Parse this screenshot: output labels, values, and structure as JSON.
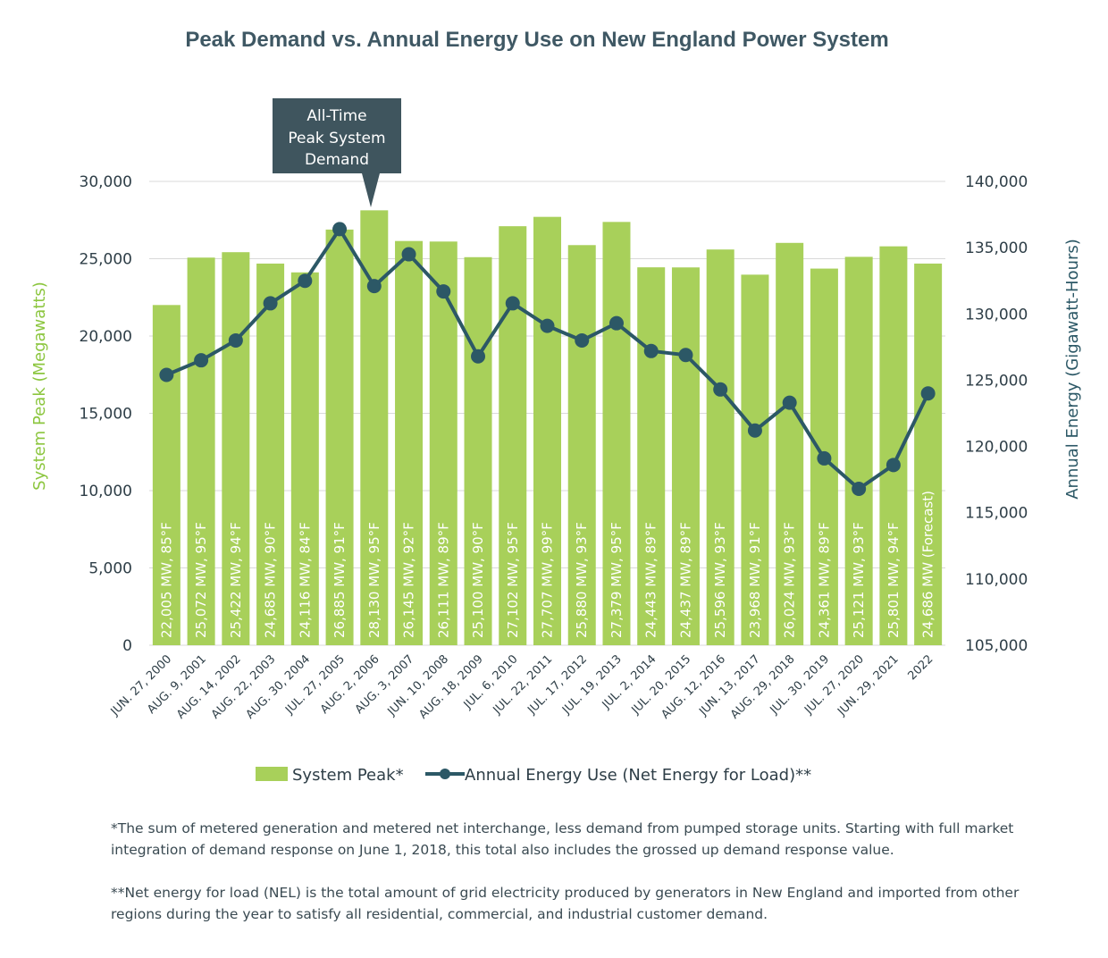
{
  "chart_data": {
    "type": "bar+line",
    "title": "Peak Demand vs. Annual Energy Use on New England Power System",
    "ylabel_left": "System Peak (Megawatts)",
    "ylabel_right": "Annual Energy (Gigawatt-Hours)",
    "ylim_left": [
      0,
      30000
    ],
    "ylim_right": [
      105000,
      140000
    ],
    "yticks_left": [
      "0",
      "5,000",
      "10,000",
      "15,000",
      "20,000",
      "25,000",
      "30,000"
    ],
    "yticks_right": [
      "105,000",
      "110,000",
      "115,000",
      "120,000",
      "125,000",
      "130,000",
      "135,000",
      "140,000"
    ],
    "categories": [
      "JUN. 27, 2000",
      "AUG. 9, 2001",
      "AUG. 14, 2002",
      "AUG. 22, 2003",
      "AUG. 30, 2004",
      "JUL. 27, 2005",
      "AUG. 2, 2006",
      "AUG. 3, 2007",
      "JUN. 10, 2008",
      "AUG. 18, 2009",
      "JUL. 6, 2010",
      "JUL. 22, 2011",
      "JUL. 17, 2012",
      "JUL. 19, 2013",
      "JUL. 2, 2014",
      "JUL. 20, 2015",
      "AUG. 12, 2016",
      "JUN. 13, 2017",
      "AUG. 29, 2018",
      "JUL. 30, 2019",
      "JUL. 27, 2020",
      "JUN. 29, 2021",
      "2022"
    ],
    "series": [
      {
        "name": "System Peak*",
        "type": "bar",
        "axis": "left",
        "color": "#a8d05a",
        "values": [
          22005,
          25072,
          25422,
          24685,
          24116,
          26885,
          28130,
          26145,
          26111,
          25100,
          27102,
          27707,
          25880,
          27379,
          24443,
          24437,
          25596,
          23968,
          26024,
          24361,
          25121,
          25801,
          24686
        ],
        "labels": [
          "22,005 MW, 85°F",
          "25,072 MW, 95°F",
          "25,422 MW, 94°F",
          "24,685 MW, 90°F",
          "24,116 MW, 84°F",
          "26,885 MW, 91°F",
          "28,130 MW, 95°F",
          "26,145 MW, 92°F",
          "26,111 MW, 89°F",
          "25,100 MW, 90°F",
          "27,102 MW, 95°F",
          "27,707 MW, 99°F",
          "25,880 MW, 93°F",
          "27,379 MW, 95°F",
          "24,443 MW, 89°F",
          "24,437 MW, 89°F",
          "25,596 MW, 93°F",
          "23,968 MW, 91°F",
          "26,024 MW, 93°F",
          "24,361 MW, 89°F",
          "25,121 MW, 93°F",
          "25,801 MW, 94°F",
          "24,686 MW (Forecast)"
        ]
      },
      {
        "name": "Annual Energy Use (Net Energy for Load)**",
        "type": "line",
        "axis": "right",
        "color": "#2c5866",
        "values": [
          125400,
          126500,
          128000,
          130800,
          132500,
          136400,
          132100,
          134500,
          131700,
          126800,
          130800,
          129100,
          128000,
          129300,
          127200,
          126900,
          124300,
          121200,
          123300,
          119100,
          116800,
          118600,
          124000
        ]
      }
    ],
    "callout": {
      "lines": [
        "All-Time",
        "Peak System",
        "Demand"
      ],
      "target_category": "AUG. 2, 2006"
    },
    "legend": [
      "System Peak*",
      "Annual Energy Use (Net Energy for Load)**"
    ]
  },
  "footnotes": [
    "*The sum of metered generation and metered net interchange, less demand from pumped storage units. Starting with full market integration of demand response on June 1, 2018, this total also includes the grossed up demand response value.",
    "**Net energy for load (NEL) is the total amount of grid electricity produced by generators in New England and imported from other regions during the year to satisfy all residential, commercial, and industrial customer demand."
  ],
  "colors": {
    "bar": "#a8d05a",
    "line": "#2c5866",
    "callout": "#3f555e",
    "grid": "#d9d9d9"
  }
}
